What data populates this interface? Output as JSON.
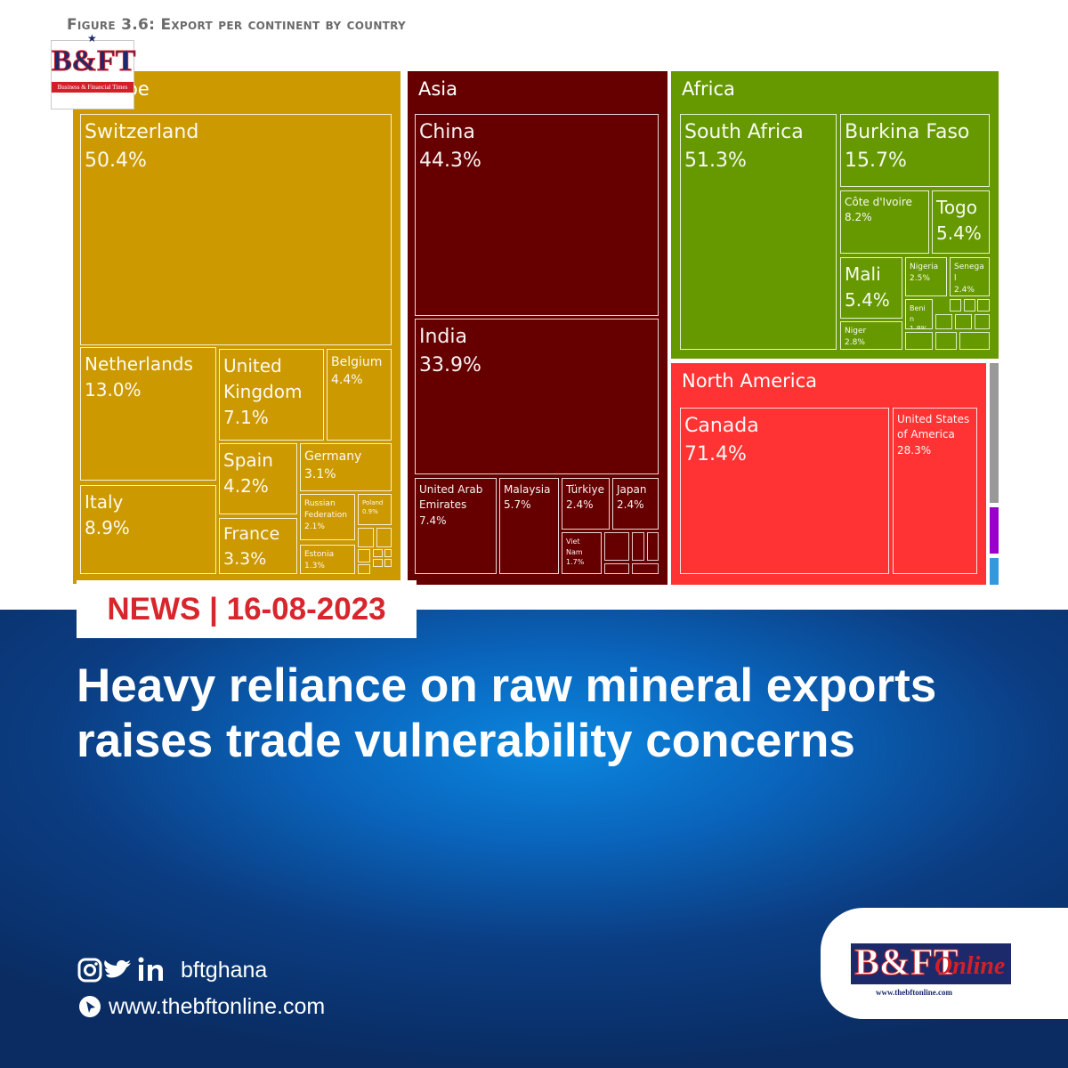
{
  "chart_data": {
    "type": "treemap",
    "title": "Figure 3.6: Export per continent by country",
    "series": [
      {
        "name": "Europe",
        "color": "#cc9900",
        "labels": [
          "Switzerland",
          "Netherlands",
          "Italy",
          "United Kingdom",
          "Belgium",
          "Spain",
          "France",
          "Germany",
          "Russian Federation",
          "Estonia",
          "Poland"
        ],
        "values": [
          50.4,
          13.0,
          8.9,
          7.1,
          4.4,
          4.2,
          3.3,
          3.1,
          2.1,
          1.3,
          0.9
        ],
        "value_labels": [
          "50.4%",
          "13.0%",
          "8.9%",
          "7.1%",
          "4.4%",
          "4.2%",
          "3.3%",
          "3.1%",
          "2.1%",
          "1.3%",
          "0.9%"
        ]
      },
      {
        "name": "Asia",
        "color": "#660000",
        "labels": [
          "China",
          "India",
          "United Arab Emirates",
          "Malaysia",
          "Türkiye",
          "Japan",
          "Viet Nam"
        ],
        "values": [
          44.3,
          33.9,
          7.4,
          5.7,
          2.4,
          2.4,
          1.7
        ],
        "value_labels": [
          "44.3%",
          "33.9%",
          "7.4%",
          "5.7%",
          "2.4%",
          "2.4%",
          "1.7%"
        ]
      },
      {
        "name": "Africa",
        "color": "#669900",
        "labels": [
          "South Africa",
          "Burkina Faso",
          "Côte d'Ivoire",
          "Togo",
          "Mali",
          "Nigeria",
          "Senegal",
          "Benin",
          "Niger"
        ],
        "values": [
          51.3,
          15.7,
          8.2,
          5.4,
          5.4,
          2.5,
          2.4,
          1.8,
          2.8
        ],
        "value_labels": [
          "51.3%",
          "15.7%",
          "8.2%",
          "5.4%",
          "5.4%",
          "2.5%",
          "2.4%",
          "1.8%",
          "2.8%"
        ]
      },
      {
        "name": "North America",
        "color": "#ff3333",
        "labels": [
          "Canada",
          "United States of America"
        ],
        "values": [
          71.4,
          28.3
        ],
        "value_labels": [
          "71.4%",
          "28.3%"
        ]
      }
    ]
  },
  "news": {
    "tag": "NEWS | 16-08-2023"
  },
  "headline": "Heavy reliance on raw mineral exports raises trade vulnerability concerns",
  "social": {
    "handle": "bftghana",
    "website": "www.thebftonline.com"
  },
  "logo": {
    "name": "B&FT",
    "tagline": "Business & Financial Times",
    "online": "Online",
    "url": "www.thebftonline.com"
  }
}
